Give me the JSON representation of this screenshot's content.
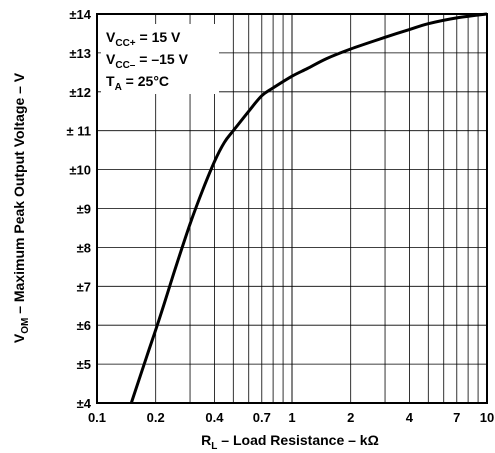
{
  "chart_data": {
    "type": "line",
    "xscale": "log",
    "xlim": [
      0.1,
      10
    ],
    "ylim": [
      4,
      14
    ],
    "grid": true,
    "x_ticks": [
      "0.1",
      "0.2",
      "0.4",
      "0.7",
      "1",
      "2",
      "4",
      "7",
      "10"
    ],
    "x_tick_values": [
      0.1,
      0.2,
      0.4,
      0.7,
      1,
      2,
      4,
      7,
      10
    ],
    "y_ticks": [
      "±4",
      "±5",
      "±6",
      "±7",
      "±8",
      "±9",
      "±10",
      "± 11",
      "±12",
      "±13",
      "±14"
    ],
    "y_tick_values": [
      4,
      5,
      6,
      7,
      8,
      9,
      10,
      11,
      12,
      13,
      14
    ],
    "xlabel": {
      "main": "R",
      "sub": "L",
      "rest": " – Load Resistance – kΩ"
    },
    "ylabel": {
      "main": "V",
      "sub": "OM",
      "rest": " – Maximum Peak Output Voltage – V"
    },
    "annotations": [
      {
        "main": "V",
        "sub": "CC+",
        "rest": " = 15 V"
      },
      {
        "main": "V",
        "sub": "CC–",
        "rest": " = –15 V"
      },
      {
        "main": "T",
        "sub": "A",
        "rest": " = 25°C"
      }
    ],
    "series": [
      {
        "x": [
          0.15,
          0.18,
          0.21,
          0.25,
          0.3,
          0.35,
          0.4,
          0.45,
          0.5,
          0.6,
          0.7,
          0.8,
          1.0,
          1.2,
          1.5,
          2.0,
          3.0,
          4.0,
          5.0,
          7.0,
          10.0
        ],
        "y": [
          4.0,
          5.2,
          6.2,
          7.4,
          8.6,
          9.5,
          10.2,
          10.7,
          11.0,
          11.5,
          11.9,
          12.1,
          12.4,
          12.6,
          12.85,
          13.1,
          13.4,
          13.6,
          13.75,
          13.9,
          14.0
        ]
      }
    ],
    "style": {
      "line_color": "#000000",
      "grid_color": "#000000"
    }
  }
}
